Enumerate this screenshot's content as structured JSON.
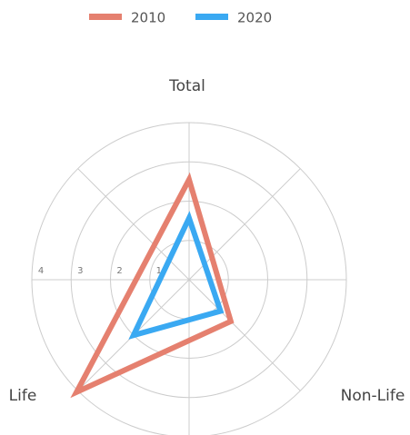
{
  "chart_data": {
    "type": "radar",
    "categories": [
      "Total",
      "Non-Life",
      "Life"
    ],
    "series": [
      {
        "name": "2010",
        "color": "#e5806f",
        "values": [
          2.55,
          1.5,
          4.05
        ]
      },
      {
        "name": "2020",
        "color": "#3aa9f2",
        "values": [
          1.57,
          1.13,
          2.0
        ]
      }
    ],
    "rlim": [
      0,
      4
    ],
    "rticks": [
      1,
      2,
      3,
      4
    ],
    "grid": true,
    "legend": "top"
  }
}
